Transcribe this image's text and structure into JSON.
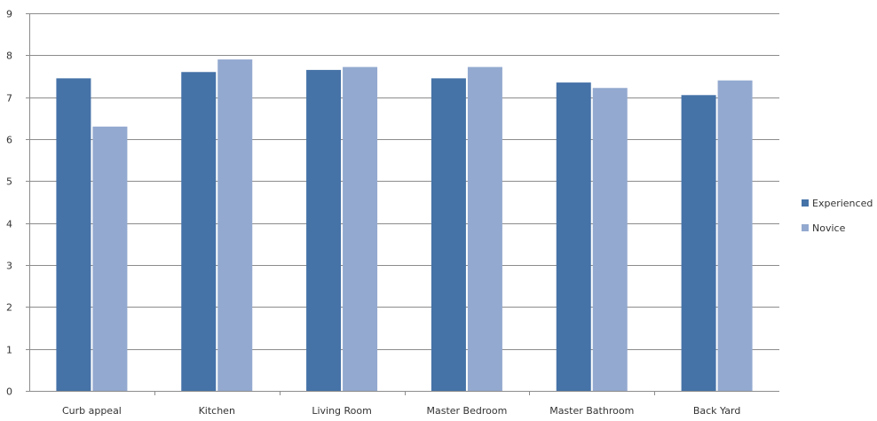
{
  "chart_data": {
    "type": "bar",
    "categories": [
      "Curb appeal",
      "Kitchen",
      "Living Room",
      "Master Bedroom",
      "Master Bathroom",
      "Back Yard"
    ],
    "series": [
      {
        "name": "Experienced",
        "color": "#4572a7",
        "values": [
          7.45,
          7.6,
          7.65,
          7.45,
          7.35,
          7.05
        ]
      },
      {
        "name": "Novice",
        "color": "#93a9cf",
        "values": [
          6.3,
          7.9,
          7.72,
          7.72,
          7.22,
          7.4
        ]
      }
    ],
    "ylim": [
      0,
      9
    ],
    "yticks": [
      0,
      1,
      2,
      3,
      4,
      5,
      6,
      7,
      8,
      9
    ],
    "grid": true,
    "legend_position": "right"
  }
}
